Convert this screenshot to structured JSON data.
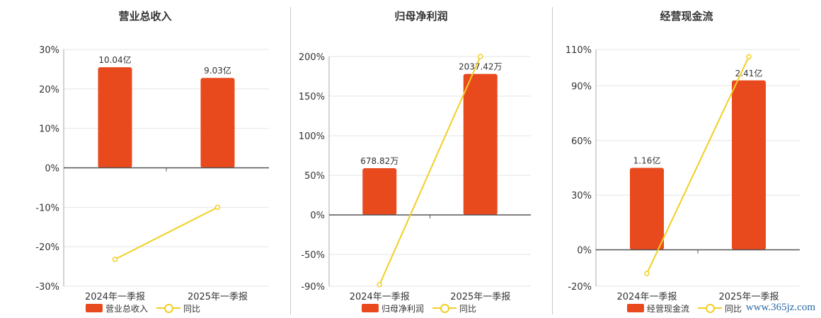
{
  "colors": {
    "bar": "#e84a1e",
    "line": "#f2cf22",
    "grid": "#e4e4e4",
    "axis": "#555555"
  },
  "legend": {
    "bar_marker": "bar-swatch",
    "line_marker": "line-circle-marker"
  },
  "watermark": "www.365jz.com",
  "chart_data": [
    {
      "type": "bar",
      "title": "营业总收入",
      "categories": [
        "2024年一季报",
        "2025年一季报"
      ],
      "series": [
        {
          "name": "营业总收入",
          "type": "bar",
          "values": [
            25.5,
            22.8
          ],
          "labels": [
            "10.04亿",
            "9.03亿"
          ]
        },
        {
          "name": "同比",
          "type": "line",
          "values": [
            -23.2,
            -10.0
          ]
        }
      ],
      "ylim": [
        -30,
        30
      ],
      "yticks": [
        -30,
        -20,
        -10,
        0,
        10,
        20,
        30
      ],
      "ytick_labels": [
        "-30%",
        "-20%",
        "-10%",
        "0%",
        "10%",
        "20%",
        "30%"
      ],
      "grid": true,
      "legend_position": "bottom"
    },
    {
      "type": "bar",
      "title": "归母净利润",
      "categories": [
        "2024年一季报",
        "2025年一季报"
      ],
      "series": [
        {
          "name": "归母净利润",
          "type": "bar",
          "values": [
            59,
            178
          ],
          "labels": [
            "678.82万",
            "2037.42万"
          ]
        },
        {
          "name": "同比",
          "type": "line",
          "values": [
            -88,
            200
          ]
        }
      ],
      "ylim": [
        -90,
        200
      ],
      "yticks": [
        -90,
        -50,
        0,
        50,
        100,
        150,
        200
      ],
      "ytick_labels": [
        "-90%",
        "-50%",
        "0%",
        "50%",
        "100%",
        "150%",
        "200%"
      ],
      "grid": true,
      "legend_position": "bottom"
    },
    {
      "type": "bar",
      "title": "经营现金流",
      "categories": [
        "2024年一季报",
        "2025年一季报"
      ],
      "series": [
        {
          "name": "经营现金流",
          "type": "bar",
          "values": [
            45,
            93
          ],
          "labels": [
            "1.16亿",
            "2.41亿"
          ]
        },
        {
          "name": "同比",
          "type": "line",
          "values": [
            -13,
            106
          ]
        }
      ],
      "ylim": [
        -20,
        110
      ],
      "yticks": [
        -20,
        0,
        30,
        60,
        90,
        110
      ],
      "ytick_labels": [
        "-20%",
        "0%",
        "30%",
        "60%",
        "90%",
        "110%"
      ],
      "grid": true,
      "legend_position": "bottom"
    }
  ]
}
